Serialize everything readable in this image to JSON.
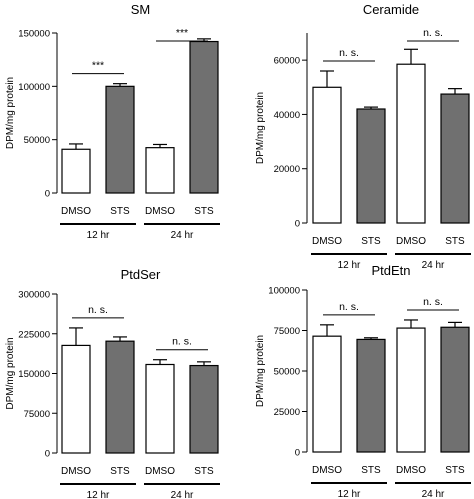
{
  "chart_data": [
    {
      "type": "bar",
      "title": "SM",
      "ylabel": "DPM/mg protein",
      "ylim": [
        0,
        150000
      ],
      "yticks": [
        0,
        50000,
        100000,
        150000
      ],
      "categories": [
        "DMSO",
        "STS",
        "DMSO",
        "STS"
      ],
      "groups": [
        "12 hr",
        "24 hr"
      ],
      "values": [
        41000,
        100000,
        42500,
        142000
      ],
      "errors": [
        5000,
        2500,
        3000,
        2500
      ],
      "fills": [
        "#ffffff",
        "#707070",
        "#ffffff",
        "#707070"
      ],
      "significance": [
        "***",
        "***"
      ]
    },
    {
      "type": "bar",
      "title": "Ceramide",
      "ylabel": "DPM/mg protein",
      "ylim": [
        0,
        70000
      ],
      "yticks": [
        0,
        20000,
        40000,
        60000
      ],
      "categories": [
        "DMSO",
        "STS",
        "DMSO",
        "STS"
      ],
      "groups": [
        "12 hr",
        "24 hr"
      ],
      "values": [
        50000,
        42000,
        58500,
        47500
      ],
      "errors": [
        6000,
        700,
        5500,
        2000
      ],
      "fills": [
        "#ffffff",
        "#707070",
        "#ffffff",
        "#707070"
      ],
      "significance": [
        "n. s.",
        "n. s."
      ]
    },
    {
      "type": "bar",
      "title": "PtdSer",
      "ylabel": "DPM/mg protein",
      "ylim": [
        0,
        300000
      ],
      "yticks": [
        0,
        75000,
        150000,
        225000,
        300000
      ],
      "categories": [
        "DMSO",
        "STS",
        "DMSO",
        "STS"
      ],
      "groups": [
        "12 hr",
        "24 hr"
      ],
      "values": [
        203000,
        211000,
        167000,
        165000
      ],
      "errors": [
        33000,
        8000,
        9000,
        7000
      ],
      "fills": [
        "#ffffff",
        "#707070",
        "#ffffff",
        "#707070"
      ],
      "significance": [
        "n. s.",
        "n. s."
      ]
    },
    {
      "type": "bar",
      "title": "PtdEtn",
      "ylabel": "DPM/mg protein",
      "ylim": [
        0,
        100000
      ],
      "yticks": [
        0,
        25000,
        50000,
        75000,
        100000
      ],
      "categories": [
        "DMSO",
        "STS",
        "DMSO",
        "STS"
      ],
      "groups": [
        "12 hr",
        "24 hr"
      ],
      "values": [
        71500,
        69500,
        76500,
        77000
      ],
      "errors": [
        7000,
        1000,
        5000,
        3000
      ],
      "fills": [
        "#ffffff",
        "#707070",
        "#ffffff",
        "#707070"
      ],
      "significance": [
        "n. s.",
        "n. s."
      ]
    }
  ]
}
